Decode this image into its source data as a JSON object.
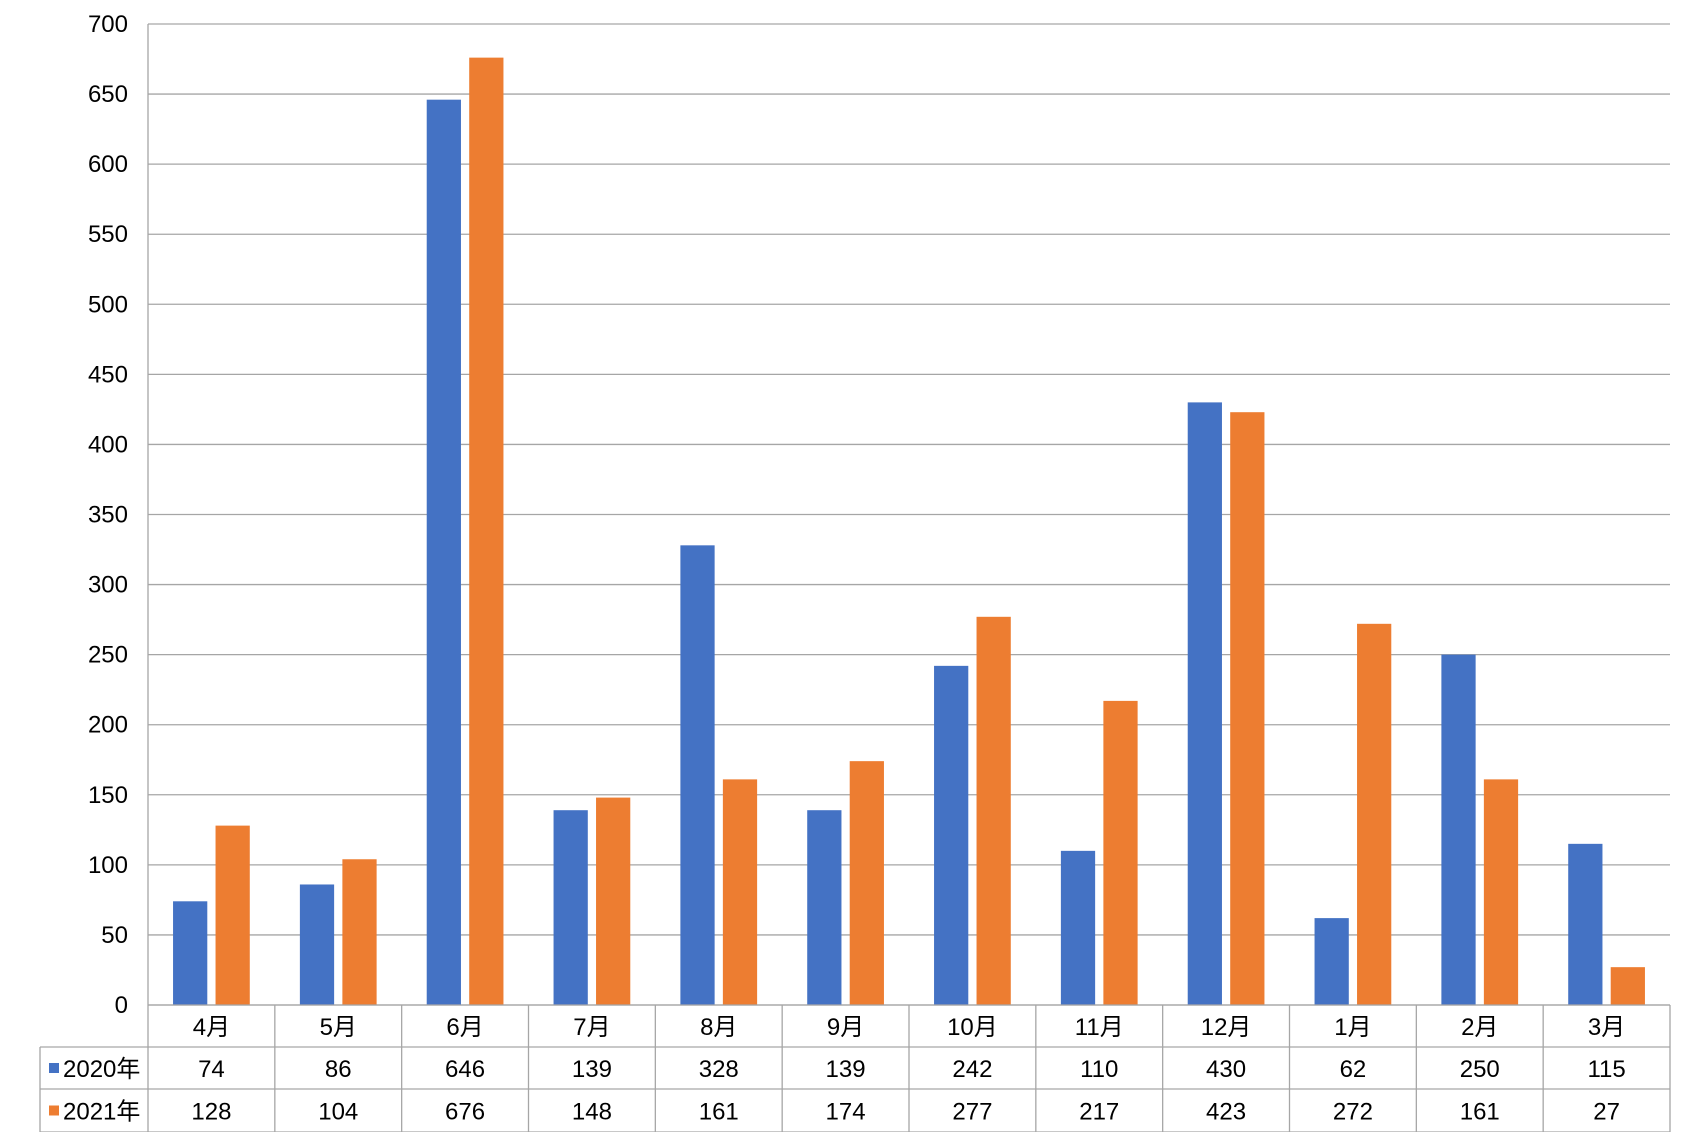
{
  "chart_data": {
    "type": "bar",
    "categories": [
      "4月",
      "5月",
      "6月",
      "7月",
      "8月",
      "9月",
      "10月",
      "11月",
      "12月",
      "1月",
      "2月",
      "3月"
    ],
    "series": [
      {
        "name": "2020年",
        "color": "#4472C4",
        "values": [
          74,
          86,
          646,
          139,
          328,
          139,
          242,
          110,
          430,
          62,
          250,
          115
        ]
      },
      {
        "name": "2021年",
        "color": "#ED7D31",
        "values": [
          128,
          104,
          676,
          148,
          161,
          174,
          277,
          217,
          423,
          272,
          161,
          27
        ]
      }
    ],
    "ylim": [
      0,
      700
    ],
    "yticks": [
      0,
      50,
      100,
      150,
      200,
      250,
      300,
      350,
      400,
      450,
      500,
      550,
      600,
      650,
      700
    ],
    "grid": true,
    "legend": "data-table",
    "data_table": true
  }
}
